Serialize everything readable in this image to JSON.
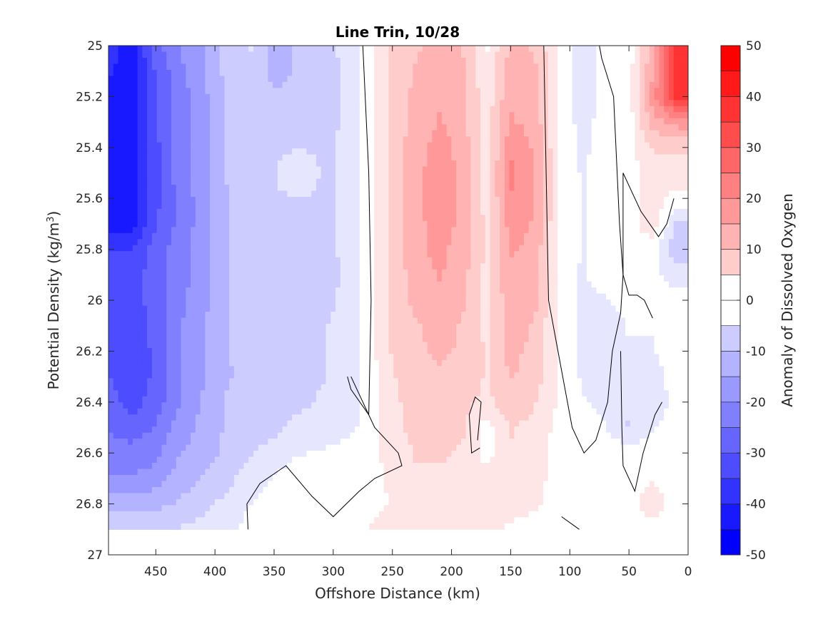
{
  "chart_data": {
    "type": "heatmap",
    "subtype": "filled contour",
    "title": "Line Trin, 10/28",
    "xlabel": "Offshore Distance (km)",
    "ylabel_main": "Potential Density (kg/m",
    "ylabel_sup": "3",
    "ylabel_end": ")",
    "colorbar_label": "Anomaly of Dissolved Oxygen",
    "xlim": [
      490,
      0
    ],
    "x_reversed": true,
    "ylim": [
      25,
      27
    ],
    "y_reversed": true,
    "clim": [
      -50,
      50
    ],
    "contour_step": 5,
    "x_ticks": [
      450,
      400,
      350,
      300,
      250,
      200,
      150,
      100,
      50,
      0
    ],
    "x_tick_labels": [
      "450",
      "400",
      "350",
      "300",
      "250",
      "200",
      "150",
      "100",
      "50",
      "0"
    ],
    "y_ticks": [
      25,
      25.2,
      25.4,
      25.6,
      25.8,
      26,
      26.2,
      26.4,
      26.6,
      26.8,
      27
    ],
    "y_tick_labels": [
      "25",
      "25.2",
      "25.4",
      "25.6",
      "25.8",
      "26",
      "26.2",
      "26.4",
      "26.6",
      "26.8",
      "27"
    ],
    "colorbar_ticks": [
      50,
      40,
      30,
      20,
      10,
      0,
      -10,
      -20,
      -30,
      -40,
      -50
    ],
    "colorbar_tick_labels": [
      "50",
      "40",
      "30",
      "20",
      "10",
      "0",
      "-10",
      "-20",
      "-30",
      "-40",
      "-50"
    ],
    "data_bottom_density": 26.9,
    "x": [
      490,
      470,
      450,
      430,
      410,
      390,
      370,
      350,
      330,
      310,
      290,
      270,
      250,
      230,
      210,
      190,
      170,
      150,
      130,
      110,
      90,
      70,
      50,
      30,
      10
    ],
    "y": [
      25.0,
      25.1,
      25.2,
      25.3,
      25.4,
      25.5,
      25.6,
      25.7,
      25.8,
      25.9,
      26.0,
      26.1,
      26.2,
      26.3,
      26.4,
      26.5,
      26.6,
      26.7,
      26.8,
      26.9
    ],
    "values": [
      [
        -40,
        -45,
        -30,
        -22,
        -18,
        -10,
        -7,
        -14,
        -12,
        -10,
        -6,
        0,
        8,
        12,
        14,
        12,
        2,
        14,
        12,
        2,
        -7,
        0,
        0,
        15,
        38
      ],
      [
        -42,
        -45,
        -32,
        -24,
        -18,
        -11,
        -8,
        -14,
        -12,
        -10,
        -7,
        0,
        9,
        13,
        15,
        13,
        3,
        15,
        14,
        3,
        -6,
        0,
        0,
        17,
        40
      ],
      [
        -44,
        -45,
        -33,
        -25,
        -19,
        -12,
        -9,
        -12,
        -11,
        -10,
        -7,
        0,
        9,
        14,
        17,
        14,
        4,
        17,
        15,
        3,
        -6,
        0,
        0,
        20,
        40
      ],
      [
        -44,
        -45,
        -33,
        -25,
        -19,
        -12,
        -9,
        -9,
        -9,
        -9,
        -7,
        0,
        10,
        14,
        18,
        14,
        5,
        18,
        16,
        3,
        -5,
        0,
        0,
        15,
        20
      ],
      [
        -44,
        -45,
        -34,
        -25,
        -20,
        -12,
        -9,
        -9,
        -8,
        -8,
        -7,
        0,
        10,
        15,
        20,
        15,
        5,
        21,
        17,
        3,
        -4,
        0,
        0,
        8,
        8
      ],
      [
        -44,
        -45,
        -34,
        -25,
        -20,
        -12,
        -9,
        -8,
        -2,
        -8,
        -7,
        0,
        10,
        16,
        21,
        16,
        5,
        24,
        18,
        3,
        -3,
        0,
        0,
        6,
        6
      ],
      [
        -44,
        -45,
        -34,
        -26,
        -20,
        -13,
        -9,
        -8,
        -8,
        -8,
        -7,
        0,
        10,
        16,
        21,
        16,
        5,
        22,
        18,
        3,
        -3,
        0,
        0,
        6,
        0
      ],
      [
        -44,
        -44,
        -33,
        -26,
        -20,
        -13,
        -9,
        -8,
        -8,
        -8,
        -7,
        0,
        10,
        16,
        20,
        16,
        6,
        20,
        17,
        3,
        -3,
        0,
        0,
        6,
        -8
      ],
      [
        -38,
        -38,
        -30,
        -25,
        -20,
        -13,
        -9,
        -8,
        -8,
        -8,
        -7,
        0,
        10,
        16,
        19,
        15,
        6,
        18,
        16,
        3,
        -3,
        0,
        0,
        0,
        -12
      ],
      [
        -35,
        -35,
        -30,
        -25,
        -19,
        -13,
        -9,
        -8,
        -8,
        -10,
        -7,
        0,
        9,
        15,
        18,
        14,
        6,
        17,
        15,
        2,
        -3,
        0,
        0,
        -1,
        -5
      ],
      [
        -35,
        -35,
        -30,
        -24,
        -19,
        -13,
        -9,
        -8,
        -8,
        -10,
        -6,
        0,
        9,
        14,
        16,
        13,
        6,
        16,
        14,
        2,
        -4,
        -3,
        0,
        0,
        0
      ],
      [
        -33,
        -35,
        -31,
        -23,
        -18,
        -13,
        -9,
        -8,
        -8,
        -8,
        -6,
        0,
        8,
        12,
        14,
        12,
        6,
        15,
        12,
        2,
        -4,
        -6,
        -2,
        -2,
        0
      ],
      [
        -33,
        -37,
        -31,
        -23,
        -18,
        -13,
        -10,
        -8,
        -8,
        -8,
        -6,
        0,
        8,
        12,
        13,
        12,
        7,
        14,
        11,
        2,
        -4,
        -7,
        -3,
        -3,
        0
      ],
      [
        -32,
        -37,
        -31,
        -23,
        -18,
        -13,
        -11,
        -10,
        -8,
        -8,
        -6,
        0,
        7,
        11,
        12,
        11,
        7,
        13,
        10,
        2,
        -3,
        -6,
        -5,
        -5,
        0
      ],
      [
        -30,
        -35,
        -30,
        -23,
        -17,
        -12,
        -11,
        -10,
        -9,
        -7,
        -5,
        -1,
        6,
        10,
        11,
        9,
        6,
        11,
        8,
        2,
        -2,
        -4,
        -7,
        -7,
        0
      ],
      [
        -28,
        -30,
        -27,
        -20,
        -16,
        -12,
        -11,
        -9,
        -6,
        -5,
        -4,
        -1,
        6,
        9,
        9,
        8,
        0,
        8,
        6,
        1,
        0,
        -2,
        -8,
        -3,
        0
      ],
      [
        -25,
        -26,
        -24,
        -18,
        -15,
        -11,
        -8,
        -5,
        -3,
        -2,
        -1,
        0,
        5,
        8,
        8,
        7,
        0,
        7,
        5,
        1,
        0,
        0,
        0,
        0,
        0
      ],
      [
        -22,
        -22,
        -20,
        -15,
        -12,
        -9,
        -5,
        -2,
        0,
        0,
        0,
        0,
        4,
        7,
        7,
        6,
        5,
        6,
        4,
        1,
        0,
        0,
        0,
        2,
        0
      ],
      [
        -15,
        -15,
        -14,
        -12,
        -9,
        -6,
        -3,
        0,
        0,
        0,
        0,
        0,
        3,
        5,
        5,
        4,
        3,
        4,
        3,
        1,
        0,
        0,
        0,
        6,
        0
      ],
      [
        -8,
        -8,
        -8,
        -7,
        -6,
        -5,
        0,
        0,
        0,
        0,
        0,
        3,
        7,
        7,
        5,
        5,
        3,
        2,
        1,
        0,
        0,
        0,
        0,
        0,
        0
      ]
    ],
    "zero_contours": [
      [
        [
          275,
          25.0
        ],
        [
          270,
          25.5
        ],
        [
          268,
          26.0
        ],
        [
          270,
          26.45
        ],
        [
          285,
          26.35
        ],
        [
          288,
          26.3
        ]
      ],
      [
        [
          285,
          26.3
        ],
        [
          275,
          26.4
        ],
        [
          265,
          26.5
        ],
        [
          245,
          26.6
        ],
        [
          242,
          26.65
        ],
        [
          265,
          26.7
        ],
        [
          278,
          26.75
        ],
        [
          300,
          26.85
        ],
        [
          318,
          26.77
        ],
        [
          340,
          26.65
        ],
        [
          362,
          26.72
        ],
        [
          373,
          26.8
        ],
        [
          372,
          26.9
        ]
      ],
      [
        [
          122,
          25.0
        ],
        [
          120,
          25.5
        ],
        [
          118,
          26.0
        ],
        [
          110,
          26.2
        ],
        [
          98,
          26.5
        ],
        [
          88,
          26.6
        ],
        [
          78,
          26.55
        ],
        [
          68,
          26.4
        ],
        [
          64,
          26.2
        ],
        [
          57,
          26.05
        ],
        [
          55,
          25.9
        ],
        [
          58,
          25.7
        ],
        [
          60,
          25.5
        ],
        [
          63,
          25.2
        ],
        [
          73,
          25.05
        ],
        [
          75,
          25.0
        ]
      ],
      [
        [
          57,
          26.2
        ],
        [
          56,
          26.5
        ],
        [
          55,
          26.65
        ],
        [
          45,
          26.75
        ],
        [
          38,
          26.6
        ],
        [
          28,
          26.45
        ],
        [
          22,
          26.4
        ]
      ],
      [
        [
          30,
          26.07
        ],
        [
          37,
          26.0
        ],
        [
          43,
          25.98
        ],
        [
          50,
          25.98
        ],
        [
          55,
          25.9
        ],
        [
          55,
          25.7
        ],
        [
          55,
          25.5
        ],
        [
          40,
          25.65
        ],
        [
          25,
          25.75
        ],
        [
          18,
          25.7
        ],
        [
          12,
          25.6
        ]
      ],
      [
        [
          178,
          26.55
        ],
        [
          175,
          26.4
        ],
        [
          180,
          26.38
        ],
        [
          185,
          26.45
        ],
        [
          183,
          26.6
        ],
        [
          176,
          26.58
        ]
      ],
      [
        [
          107,
          26.85
        ],
        [
          98,
          26.88
        ],
        [
          92,
          26.9
        ]
      ]
    ]
  }
}
